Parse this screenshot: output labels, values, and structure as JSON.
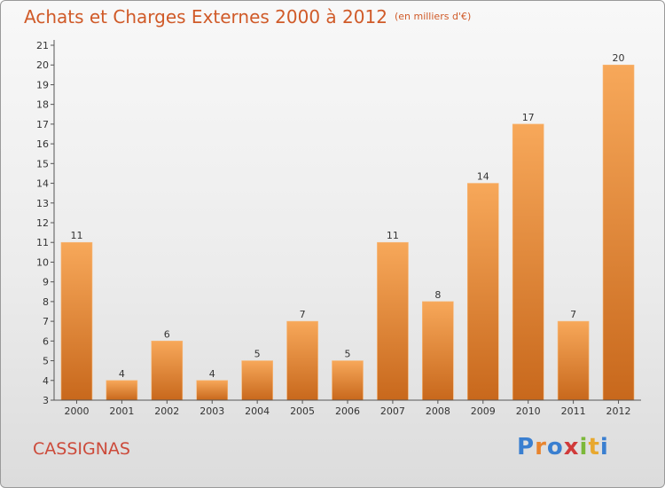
{
  "chart_data": {
    "type": "bar",
    "title": "Achats et Charges Externes 2000 à 2012",
    "subtitle": "(en milliers d'€)",
    "categories": [
      "2000",
      "2001",
      "2002",
      "2003",
      "2004",
      "2005",
      "2006",
      "2007",
      "2008",
      "2009",
      "2010",
      "2011",
      "2012"
    ],
    "values": [
      11,
      4,
      6,
      4,
      5,
      7,
      5,
      11,
      8,
      14,
      17,
      7,
      20
    ],
    "ylim": [
      3,
      21
    ],
    "yticks": [
      3,
      4,
      5,
      6,
      7,
      8,
      9,
      10,
      11,
      12,
      13,
      14,
      15,
      16,
      17,
      18,
      19,
      20,
      21
    ],
    "grid": false,
    "bar_color": "#e8842e"
  },
  "location": "CASSIGNAS",
  "logo": {
    "letters": [
      "P",
      "r",
      "o",
      "x",
      "i",
      "t",
      "i"
    ],
    "colors": [
      "#3a7fd0",
      "#e8842e",
      "#3a7fd0",
      "#d03a3a",
      "#7cb83a",
      "#e8a82e",
      "#3a7fd0"
    ]
  }
}
